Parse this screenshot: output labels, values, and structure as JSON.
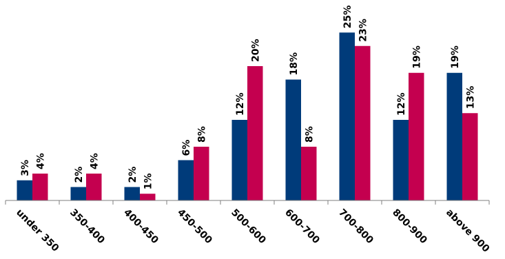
{
  "chart_data": {
    "type": "bar",
    "categories": [
      "under 350",
      "350-400",
      "400-450",
      "450-500",
      "500-600",
      "600-700",
      "700-800",
      "800-900",
      "above 900"
    ],
    "series": [
      {
        "values": [
          3,
          2,
          2,
          6,
          12,
          18,
          25,
          12,
          19
        ],
        "labels": [
          "3%",
          "2%",
          "2%",
          "6%",
          "12%",
          "18%",
          "25%",
          "12%",
          "19%"
        ],
        "color": "#003B7A"
      },
      {
        "values": [
          4,
          4,
          1,
          8,
          20,
          8,
          23,
          19,
          13
        ],
        "labels": [
          "4%",
          "4%",
          "1%",
          "8%",
          "20%",
          "8%",
          "23%",
          "19%",
          "13%"
        ],
        "color": "#C4004F"
      }
    ],
    "y_unit": "%",
    "ylim": [
      0,
      25
    ],
    "grid": false,
    "legend": "none",
    "title": "",
    "xlabel": "",
    "ylabel": ""
  }
}
